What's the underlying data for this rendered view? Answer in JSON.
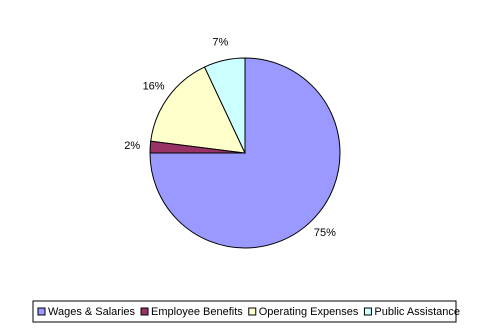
{
  "chart_data": {
    "type": "pie",
    "categories": [
      "Wages & Salaries",
      "Employee Benefits",
      "Operating Expenses",
      "Public Assistance"
    ],
    "values": [
      75,
      2,
      16,
      7
    ],
    "value_labels": [
      "75%",
      "2%",
      "16%",
      "7%"
    ],
    "colors": [
      "#9999ff",
      "#993366",
      "#ffffcc",
      "#ccffff"
    ],
    "legend": "bottom"
  }
}
